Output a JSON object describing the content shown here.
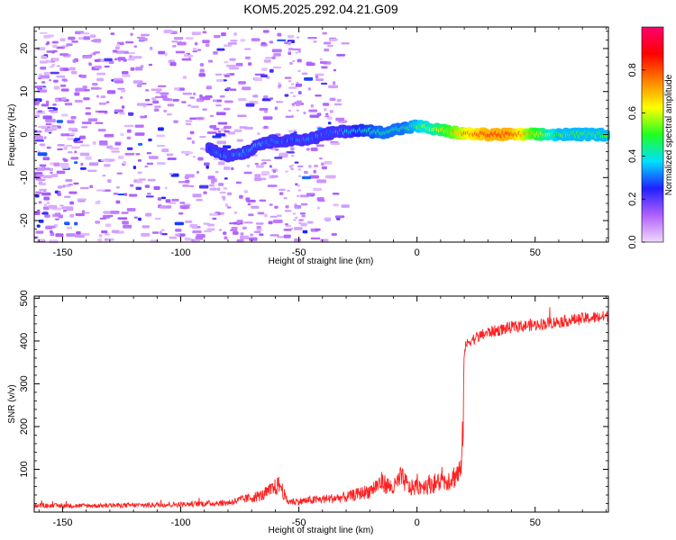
{
  "title": "KOM5.2025.292.04.21.G09",
  "chart_data": [
    {
      "type": "heatmap",
      "xlabel": "Height of straight line (km)",
      "ylabel": "Frequency (Hz)",
      "xlim": [
        -162,
        81
      ],
      "ylim": [
        -25,
        25
      ],
      "xticks": [
        -150,
        -100,
        -50,
        0,
        50
      ],
      "yticks": [
        -20,
        -10,
        0,
        10,
        20
      ],
      "colorbar": {
        "label": "Normalized spectral amplitude",
        "range": [
          0,
          1
        ],
        "ticks": [
          "0.0",
          "0.2",
          "0.4",
          "0.6",
          "0.8"
        ],
        "colors": [
          "#f0d8ff",
          "#b060ff",
          "#2020ff",
          "#00e0ff",
          "#20ff20",
          "#ffff00",
          "#ff8000",
          "#ff0000",
          "#ff0070"
        ]
      },
      "ridge": {
        "description": "dominant frequency track",
        "points": [
          [
            -88,
            -3
          ],
          [
            -80,
            -5
          ],
          [
            -72,
            -4
          ],
          [
            -66,
            -2
          ],
          [
            -60,
            -1.5
          ],
          [
            -45,
            -1
          ],
          [
            -35,
            0.5
          ],
          [
            -25,
            1
          ],
          [
            -15,
            0.5
          ],
          [
            -5,
            1.5
          ],
          [
            0,
            2
          ],
          [
            10,
            1
          ],
          [
            20,
            0.2
          ],
          [
            30,
            0
          ],
          [
            40,
            0
          ],
          [
            50,
            0
          ],
          [
            60,
            0
          ],
          [
            70,
            0
          ],
          [
            81,
            0
          ]
        ],
        "amplitude": [
          0.25,
          0.3,
          0.35,
          0.35,
          0.3,
          0.3,
          0.3,
          0.4,
          0.45,
          0.45,
          0.5,
          0.6,
          0.75,
          0.85,
          0.85,
          0.65,
          0.5,
          0.5,
          0.5
        ]
      }
    },
    {
      "type": "line",
      "xlabel": "Height of straight line (km)",
      "ylabel": "SNR (v/v)",
      "xlim": [
        -162,
        81
      ],
      "ylim": [
        0,
        505
      ],
      "xticks": [
        -150,
        -100,
        -50,
        0,
        50
      ],
      "yticks": [
        100,
        200,
        300,
        400,
        500
      ],
      "color": "#ff2020",
      "series": [
        {
          "name": "SNR",
          "x": [
            -162,
            -140,
            -120,
            -100,
            -80,
            -65,
            -58,
            -55,
            -50,
            -40,
            -30,
            -20,
            -15,
            -10,
            -7,
            -5,
            -3,
            0,
            5,
            10,
            15,
            19,
            20,
            22,
            30,
            40,
            50,
            60,
            70,
            81
          ],
          "y": [
            15,
            15,
            16,
            18,
            22,
            40,
            65,
            25,
            25,
            30,
            35,
            50,
            70,
            55,
            80,
            70,
            55,
            60,
            65,
            70,
            80,
            100,
            380,
            400,
            420,
            432,
            438,
            445,
            452,
            458
          ]
        }
      ]
    }
  ]
}
